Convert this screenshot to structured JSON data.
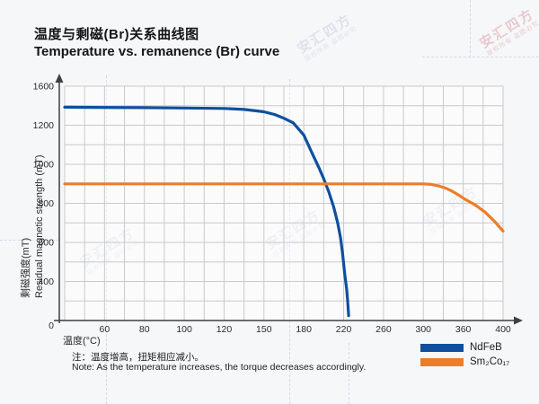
{
  "header": {
    "title_cn": "温度与剩磁(Br)关系曲线图",
    "title_en": "Temperature vs. remanence (Br) curve"
  },
  "watermark": {
    "name": "安汇四方",
    "notice": "版权所有 盗图必究"
  },
  "notes": {
    "line1": "注：温度增高，扭矩相应减小。",
    "line2": "Note: As the temperature increases, the torque decreases accordingly."
  },
  "chart_data": {
    "type": "line",
    "title": "温度与剩磁(Br)关系曲线图 / Temperature vs. remanence (Br) curve",
    "xlabel": "温度(°C)",
    "ylabel_cn": "剩磁强度(mT)",
    "ylabel_en": "Residual magnetic strength (mT)",
    "x_ticks": [
      0,
      60,
      80,
      100,
      120,
      150,
      180,
      220,
      260,
      300,
      360,
      400
    ],
    "y_ticks": [
      1600,
      1200,
      1000,
      800,
      600,
      400,
      0
    ],
    "grid": true,
    "legend_position": "bottom-right",
    "colors": {
      "grid": "#c9cacc",
      "axis": "#3f3f3f",
      "ndfeb": "#0f4f9e",
      "sm2co17": "#ee7c28"
    },
    "series": [
      {
        "name": "NdFeB",
        "color": "#0f4f9e",
        "points": [
          [
            0,
            1385
          ],
          [
            40,
            1383
          ],
          [
            80,
            1380
          ],
          [
            100,
            1377
          ],
          [
            120,
            1372
          ],
          [
            135,
            1362
          ],
          [
            150,
            1338
          ],
          [
            158,
            1310
          ],
          [
            165,
            1272
          ],
          [
            172,
            1225
          ],
          [
            180,
            1150
          ],
          [
            188,
            1060
          ],
          [
            195,
            985
          ],
          [
            200,
            925
          ],
          [
            205,
            860
          ],
          [
            210,
            780
          ],
          [
            214,
            700
          ],
          [
            217,
            620
          ],
          [
            219,
            540
          ],
          [
            221,
            440
          ],
          [
            223,
            320
          ],
          [
            224,
            200
          ],
          [
            225,
            50
          ]
        ]
      },
      {
        "name": "Sm₂Co₁₇",
        "color": "#ee7c28",
        "points": [
          [
            0,
            900
          ],
          [
            100,
            900
          ],
          [
            200,
            900
          ],
          [
            300,
            900
          ],
          [
            312,
            897
          ],
          [
            322,
            890
          ],
          [
            332,
            880
          ],
          [
            342,
            865
          ],
          [
            352,
            845
          ],
          [
            362,
            820
          ],
          [
            372,
            792
          ],
          [
            382,
            755
          ],
          [
            391,
            710
          ],
          [
            400,
            658
          ]
        ]
      }
    ]
  }
}
